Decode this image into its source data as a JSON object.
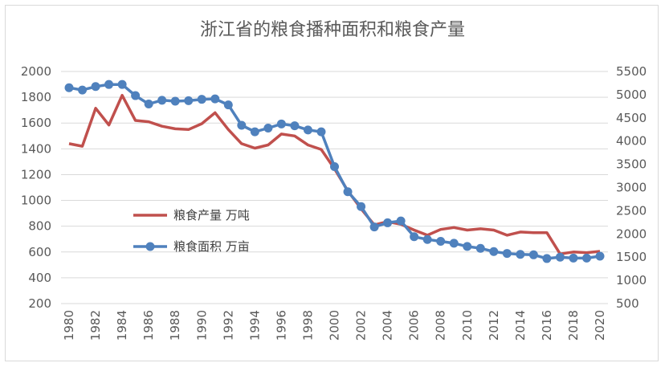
{
  "chart_data": {
    "type": "line",
    "title": "浙江省的粮食播种面积和粮食产量",
    "x": [
      1980,
      1981,
      1982,
      1983,
      1984,
      1985,
      1986,
      1987,
      1988,
      1989,
      1990,
      1991,
      1992,
      1993,
      1994,
      1995,
      1996,
      1997,
      1998,
      1999,
      2000,
      2001,
      2002,
      2003,
      2004,
      2005,
      2006,
      2007,
      2008,
      2009,
      2010,
      2011,
      2012,
      2013,
      2014,
      2015,
      2016,
      2017,
      2018,
      2019,
      2020
    ],
    "x_tick_labels": [
      "1980",
      "1982",
      "1984",
      "1986",
      "1988",
      "1990",
      "1992",
      "1994",
      "1996",
      "1998",
      "2000",
      "2002",
      "2004",
      "2006",
      "2008",
      "2010",
      "2012",
      "2014",
      "2016",
      "2018",
      "2020"
    ],
    "y_left": {
      "ylim": [
        200,
        2000
      ],
      "ticks": [
        200,
        400,
        600,
        800,
        1000,
        1200,
        1400,
        1600,
        1800,
        2000
      ],
      "tick_labels": [
        "200",
        "400",
        "600",
        "800",
        "1000",
        "1200",
        "1400",
        "1600",
        "1800",
        "2000"
      ]
    },
    "y_right": {
      "ylim": [
        500,
        5500
      ],
      "ticks": [
        500,
        1000,
        1500,
        2000,
        2500,
        3000,
        3500,
        4000,
        4500,
        5000,
        5500
      ],
      "tick_labels": [
        "500",
        "1000",
        "1500",
        "2000",
        "2500",
        "3000",
        "3500",
        "4000",
        "4500",
        "5000",
        "5500"
      ]
    },
    "grid": true,
    "legend_position": "center-left",
    "series": [
      {
        "name": "粮食产量 万吨",
        "axis": "left",
        "color": "#c0504d",
        "marker": false,
        "values": [
          1440,
          1420,
          1715,
          1585,
          1815,
          1620,
          1610,
          1575,
          1555,
          1550,
          1595,
          1680,
          1550,
          1440,
          1405,
          1430,
          1515,
          1500,
          1430,
          1395,
          1245,
          1075,
          935,
          810,
          835,
          815,
          770,
          730,
          775,
          790,
          770,
          780,
          770,
          730,
          755,
          750,
          750,
          585,
          600,
          595,
          605
        ]
      },
      {
        "name": "粮食面积 万亩",
        "axis": "right",
        "color": "#4f81bd",
        "marker": true,
        "values": [
          5150,
          5100,
          5175,
          5220,
          5220,
          4980,
          4800,
          4880,
          4860,
          4870,
          4900,
          4910,
          4780,
          4340,
          4200,
          4280,
          4370,
          4330,
          4240,
          4200,
          3450,
          2910,
          2590,
          2150,
          2240,
          2280,
          1940,
          1880,
          1840,
          1800,
          1730,
          1690,
          1620,
          1580,
          1560,
          1550,
          1470,
          1500,
          1480,
          1480,
          1520
        ]
      }
    ]
  }
}
